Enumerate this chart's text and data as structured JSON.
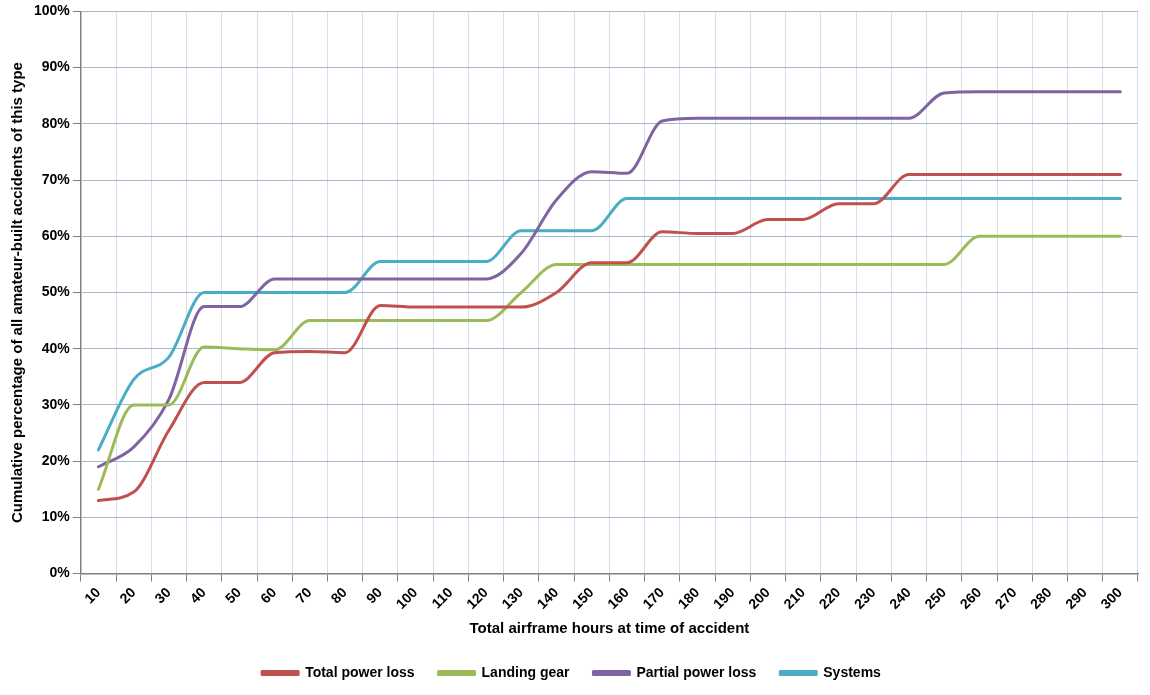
{
  "chart_data": {
    "type": "line",
    "xlabel": "Total airframe hours at time of accident",
    "ylabel": "Cumulative percentage of all amateur-built accidents of this type",
    "categories": [
      "10",
      "20",
      "30",
      "40",
      "50",
      "60",
      "70",
      "80",
      "90",
      "100",
      "110",
      "120",
      "130",
      "140",
      "150",
      "160",
      "170",
      "180",
      "190",
      "200",
      "210",
      "220",
      "230",
      "240",
      "250",
      "260",
      "270",
      "280",
      "290",
      "300"
    ],
    "series": [
      {
        "name": "Total power loss",
        "color": "#c0504d",
        "values": [
          13,
          14.5,
          25.5,
          34,
          34,
          39.3,
          39.5,
          39.3,
          47.7,
          47.4,
          47.4,
          47.4,
          47.4,
          50,
          55.3,
          55.3,
          60.8,
          60.5,
          60.5,
          63,
          63,
          65.8,
          65.8,
          71,
          71,
          71,
          71,
          71,
          71,
          71
        ]
      },
      {
        "name": "Landing gear",
        "color": "#9bbb59",
        "values": [
          15,
          30,
          30,
          40.3,
          40,
          39.8,
          45,
          45,
          45,
          45,
          45,
          45,
          50,
          55,
          55,
          55,
          55,
          55,
          55,
          55,
          55,
          55,
          55,
          55,
          55,
          60,
          60,
          60,
          60,
          60
        ]
      },
      {
        "name": "Partial power loss",
        "color": "#8064a2",
        "values": [
          19,
          22.5,
          31,
          47.5,
          47.5,
          52.4,
          52.4,
          52.4,
          52.4,
          52.4,
          52.4,
          52.4,
          57,
          66.5,
          71.5,
          71.2,
          80.5,
          81,
          81,
          81,
          81,
          81,
          81,
          81,
          85.5,
          85.7,
          85.7,
          85.7,
          85.7,
          85.7
        ]
      },
      {
        "name": "Systems",
        "color": "#4bacc6",
        "values": [
          22,
          34.5,
          38.5,
          50,
          50,
          50,
          50,
          50,
          55.5,
          55.5,
          55.5,
          55.5,
          61,
          61,
          61,
          66.7,
          66.7,
          66.7,
          66.7,
          66.7,
          66.7,
          66.7,
          66.7,
          66.7,
          66.7,
          66.7,
          66.7,
          66.7,
          66.7,
          66.7
        ]
      }
    ],
    "ylim": [
      0,
      100
    ],
    "yticks": [
      {
        "value": 0,
        "label": "0%"
      },
      {
        "value": 10,
        "label": "10%"
      },
      {
        "value": 20,
        "label": "20%"
      },
      {
        "value": 30,
        "label": "30%"
      },
      {
        "value": 40,
        "label": "40%"
      },
      {
        "value": 50,
        "label": "50%"
      },
      {
        "value": 60,
        "label": "60%"
      },
      {
        "value": 70,
        "label": "70%"
      },
      {
        "value": 80,
        "label": "80%"
      },
      {
        "value": 90,
        "label": "90%"
      },
      {
        "value": 100,
        "label": "100%"
      }
    ],
    "grid": true,
    "legend": "bottom",
    "marker": "none",
    "line_style": "solid"
  }
}
